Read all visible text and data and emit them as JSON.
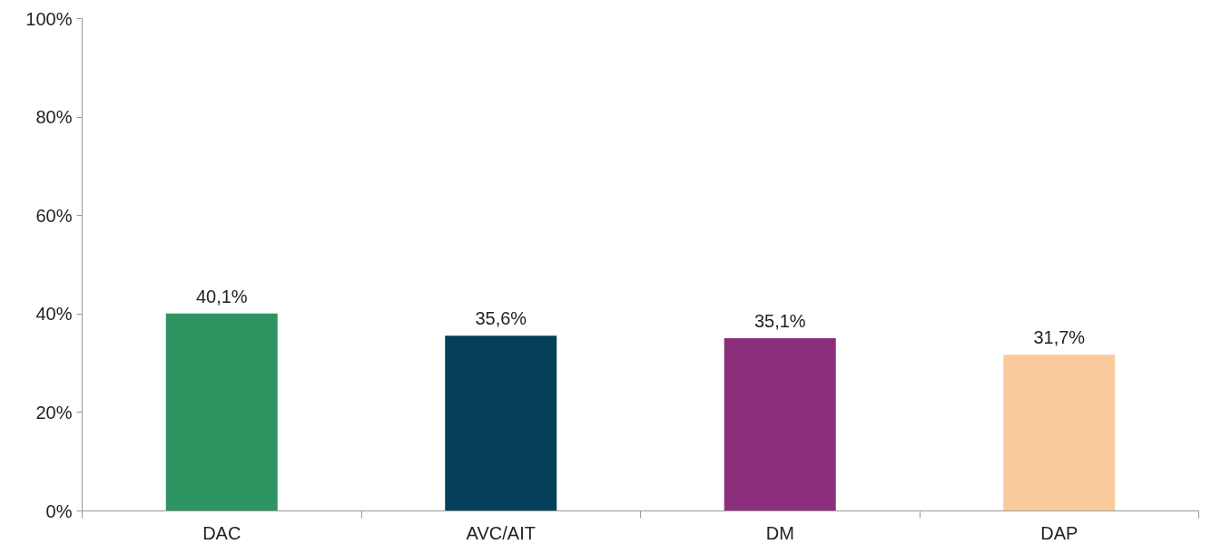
{
  "chart_data": {
    "type": "bar",
    "categories": [
      "DAC",
      "AVC/AIT",
      "DM",
      "DAP"
    ],
    "values": [
      40.1,
      35.6,
      35.1,
      31.7
    ],
    "colors": [
      "#2e9461",
      "#04405a",
      "#8b2f7d",
      "#f9cb9c"
    ],
    "value_labels": [
      "40,1%",
      "35,6%",
      "35,1%",
      "31,7%"
    ],
    "ylim": [
      0,
      100
    ],
    "yticks": [
      {
        "value": 0,
        "label": "0%"
      },
      {
        "value": 20,
        "label": "20%"
      },
      {
        "value": 40,
        "label": "40%"
      },
      {
        "value": 60,
        "label": "60%"
      },
      {
        "value": 80,
        "label": "80%"
      },
      {
        "value": 100,
        "label": "100%"
      }
    ],
    "grid": false
  }
}
